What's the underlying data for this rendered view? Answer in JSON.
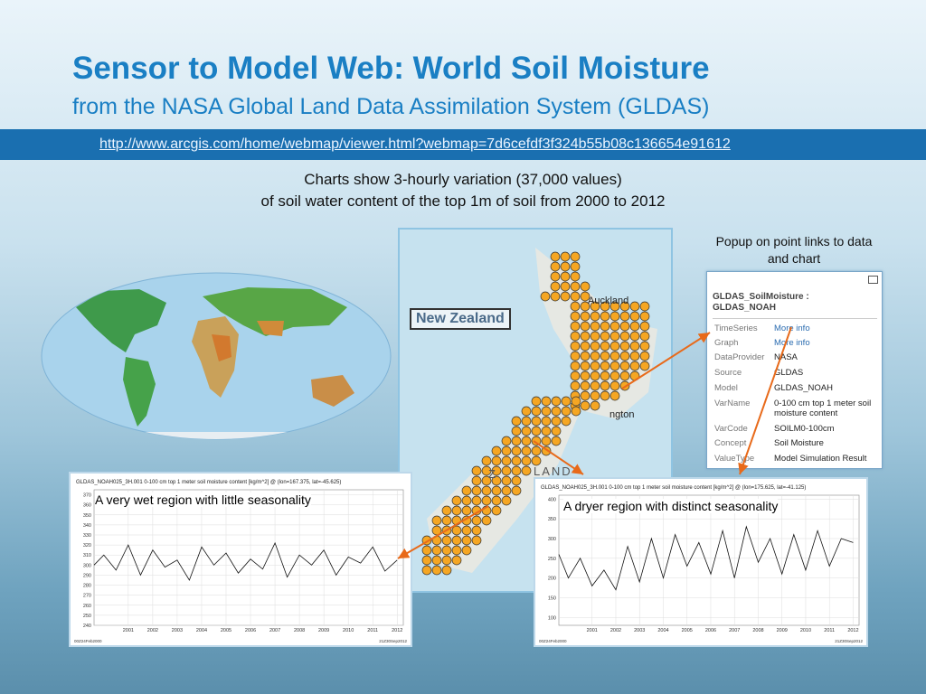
{
  "slide": {
    "title": "Sensor to Model Web: World Soil Moisture",
    "subtitle": "from the NASA Global Land Data Assimilation System (GLDAS)",
    "url": "http://www.arcgis.com/home/webmap/viewer.html?webmap=7d6cefdf3f324b55b08c136654e91612",
    "caption_line1": "Charts show 3-hourly variation (37,000 values)",
    "caption_line2": "of soil water content of the top 1m of soil from 2000 to 2012",
    "colors": {
      "title": "#1a7fc4",
      "url_bar": "#1a6fb0",
      "arrow": "#e86a1a",
      "point": "#f5a623"
    }
  },
  "map": {
    "label": "New Zealand",
    "places": [
      "Auckland",
      "ngton",
      "Z",
      "LAND"
    ]
  },
  "popup": {
    "note": "Popup on point links to data and chart",
    "title_line1": "GLDAS_SoilMoisture :",
    "title_line2": "GLDAS_NOAH",
    "rows": [
      {
        "key": "TimeSeries",
        "value": "More info",
        "link": true
      },
      {
        "key": "Graph",
        "value": "More info",
        "link": true
      },
      {
        "key": "DataProvider",
        "value": "NASA",
        "link": false
      },
      {
        "key": "Source",
        "value": "GLDAS",
        "link": false
      },
      {
        "key": "Model",
        "value": "GLDAS_NOAH",
        "link": false
      },
      {
        "key": "VarName",
        "value": "0-100 cm top 1 meter soil moisture content",
        "link": false
      },
      {
        "key": "VarCode",
        "value": "SOILM0-100cm",
        "link": false
      },
      {
        "key": "Concept",
        "value": "Soil Moisture",
        "link": false
      },
      {
        "key": "ValueType",
        "value": "Model Simulation Result",
        "link": false
      }
    ]
  },
  "chart_data": [
    {
      "type": "line",
      "title": "GLDAS_NOAH025_3H.001 0-100 cm top 1 meter soil moisture content [kg/m^2] @ (lon=167.375, lat=-45.625)",
      "callout": "A very wet region with little seasonality",
      "x": [
        2000.1,
        2000.5,
        2001.0,
        2001.5,
        2002.0,
        2002.5,
        2003.0,
        2003.5,
        2004.0,
        2004.5,
        2005.0,
        2005.5,
        2006.0,
        2006.5,
        2007.0,
        2007.5,
        2008.0,
        2008.5,
        2009.0,
        2009.5,
        2010.0,
        2010.5,
        2011.0,
        2011.5,
        2012.0,
        2012.5
      ],
      "y": [
        300,
        310,
        295,
        320,
        290,
        315,
        298,
        305,
        285,
        318,
        300,
        312,
        292,
        306,
        296,
        322,
        288,
        310,
        300,
        315,
        290,
        308,
        302,
        318,
        294,
        305
      ],
      "xticks": [
        "2001",
        "2002",
        "2003",
        "2004",
        "2005",
        "2006",
        "2007",
        "2008",
        "2009",
        "2010",
        "2011",
        "2012"
      ],
      "yticks": [
        "240",
        "250",
        "260",
        "270",
        "280",
        "290",
        "300",
        "310",
        "320",
        "330",
        "340",
        "350",
        "360",
        "370"
      ],
      "ylim": [
        240,
        375
      ],
      "footer_left": "00Z24Feb2000",
      "footer_right": "21Z30Sep2012"
    },
    {
      "type": "line",
      "title": "GLDAS_NOAH025_3H.001 0-100 cm top 1 meter soil moisture content [kg/m^2] @ (lon=175.625, lat=-41.125)",
      "callout": "A dryer region with distinct seasonality",
      "x": [
        2000.1,
        2000.5,
        2001.0,
        2001.5,
        2002.0,
        2002.5,
        2003.0,
        2003.5,
        2004.0,
        2004.5,
        2005.0,
        2005.5,
        2006.0,
        2006.5,
        2007.0,
        2007.5,
        2008.0,
        2008.5,
        2009.0,
        2009.5,
        2010.0,
        2010.5,
        2011.0,
        2011.5,
        2012.0,
        2012.5
      ],
      "y": [
        260,
        200,
        250,
        180,
        220,
        170,
        280,
        190,
        300,
        200,
        310,
        230,
        290,
        210,
        320,
        200,
        330,
        240,
        300,
        210,
        310,
        220,
        320,
        230,
        300,
        290
      ],
      "xticks": [
        "2001",
        "2002",
        "2003",
        "2004",
        "2005",
        "2006",
        "2007",
        "2008",
        "2009",
        "2010",
        "2011",
        "2012"
      ],
      "yticks": [
        "100",
        "150",
        "200",
        "250",
        "300",
        "350",
        "400"
      ],
      "ylim": [
        80,
        410
      ],
      "footer_left": "00Z24Feb2000",
      "footer_right": "21Z30Sep2012"
    }
  ]
}
